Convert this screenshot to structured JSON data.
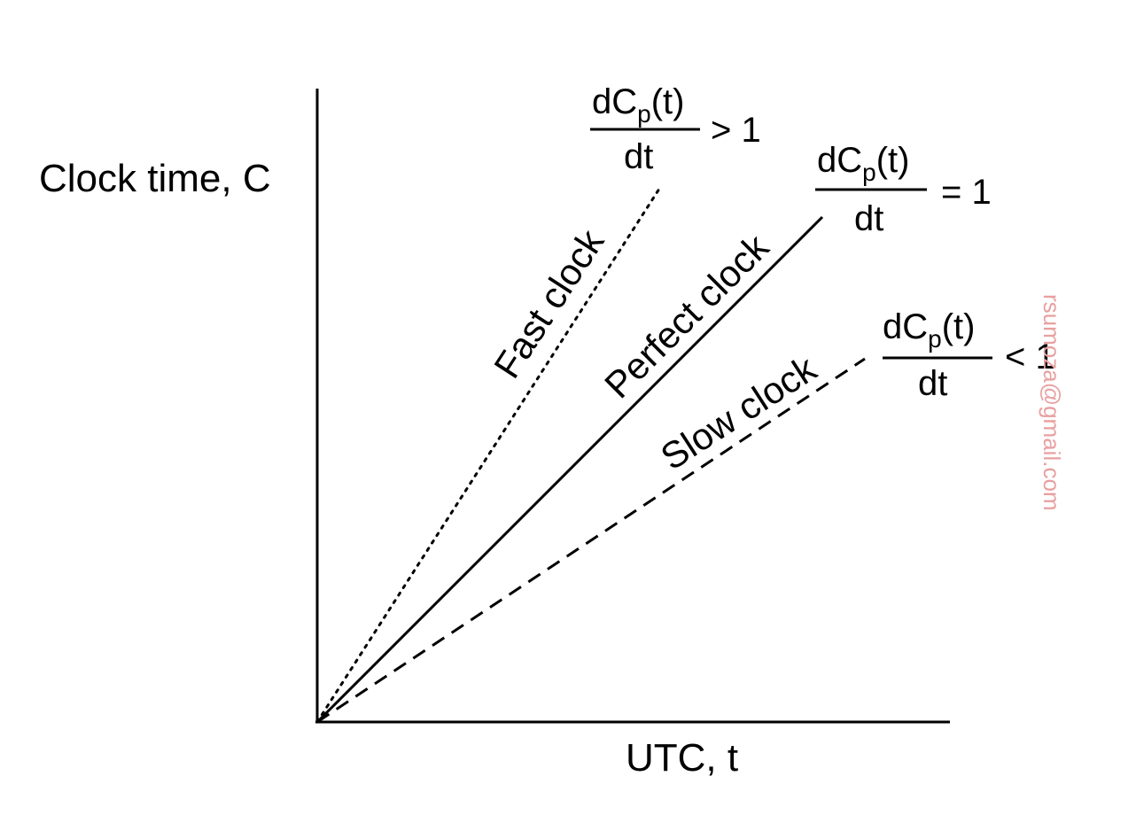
{
  "axes": {
    "y_label": "Clock time, C",
    "x_label": "UTC, t"
  },
  "clocks": [
    {
      "id": "fast",
      "label": "Fast clock",
      "style": "dotted",
      "slope": 1.6,
      "derivative": {
        "numerator": "dC",
        "subscript": "p",
        "arg": "(t)",
        "denominator": "dt",
        "relation": "> 1"
      }
    },
    {
      "id": "perfect",
      "label": "Perfect clock",
      "style": "solid",
      "slope": 1.0,
      "derivative": {
        "numerator": "dC",
        "subscript": "p",
        "arg": "(t)",
        "denominator": "dt",
        "relation": "= 1"
      }
    },
    {
      "id": "slow",
      "label": "Slow clock",
      "style": "dashed",
      "slope": 0.66,
      "derivative": {
        "numerator": "dC",
        "subscript": "p",
        "arg": "(t)",
        "denominator": "dt",
        "relation": "< 1"
      }
    }
  ],
  "watermark": {
    "text": "rsumoza@gmail.com",
    "color": "#e8a0a0"
  }
}
